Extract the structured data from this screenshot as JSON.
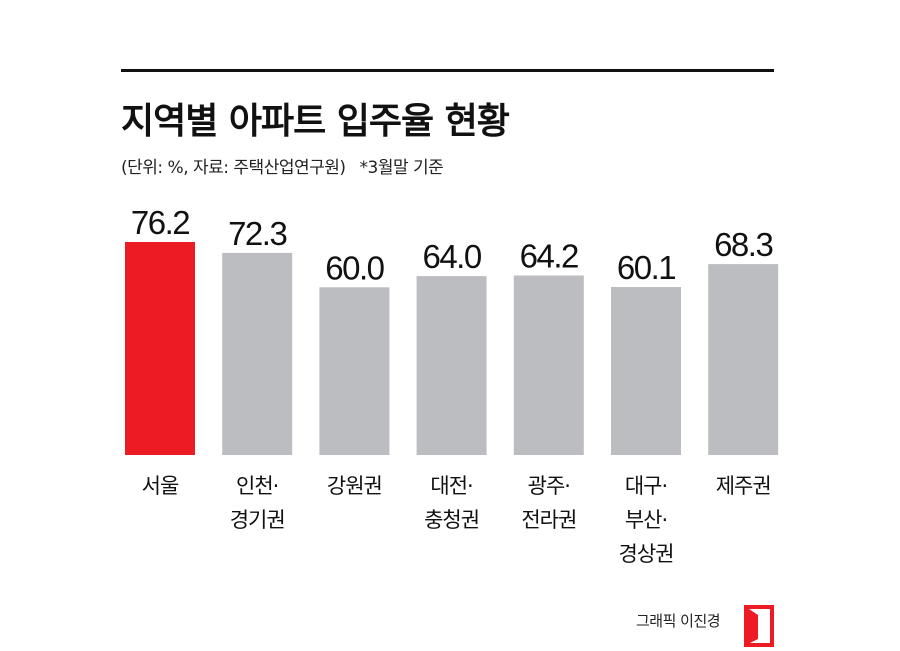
{
  "title": "지역별 아파트 입주율 현황",
  "subtitle": "(단위: %, 자료: 주택산업연구원)",
  "note": "*3월말 기준",
  "credit": "그래픽 이진경",
  "colors": {
    "highlight": "#ed1c24",
    "bar": "#bcbdc0",
    "text": "#111111"
  },
  "chart_data": {
    "type": "bar",
    "unit": "%",
    "categories": [
      [
        "서울"
      ],
      [
        "인천·",
        "경기권"
      ],
      [
        "강원권"
      ],
      [
        "대전·",
        "충청권"
      ],
      [
        "광주·",
        "전라권"
      ],
      [
        "대구·",
        "부산·",
        "경상권"
      ],
      [
        "제주권"
      ]
    ],
    "values": [
      76.2,
      72.3,
      60.0,
      64.0,
      64.2,
      60.1,
      68.3
    ],
    "value_labels": [
      "76.2",
      "72.3",
      "60.0",
      "64.0",
      "64.2",
      "60.1",
      "68.3"
    ],
    "highlight_index": 0,
    "ylim": [
      0,
      76.2
    ],
    "grid": false,
    "legend": "none"
  }
}
